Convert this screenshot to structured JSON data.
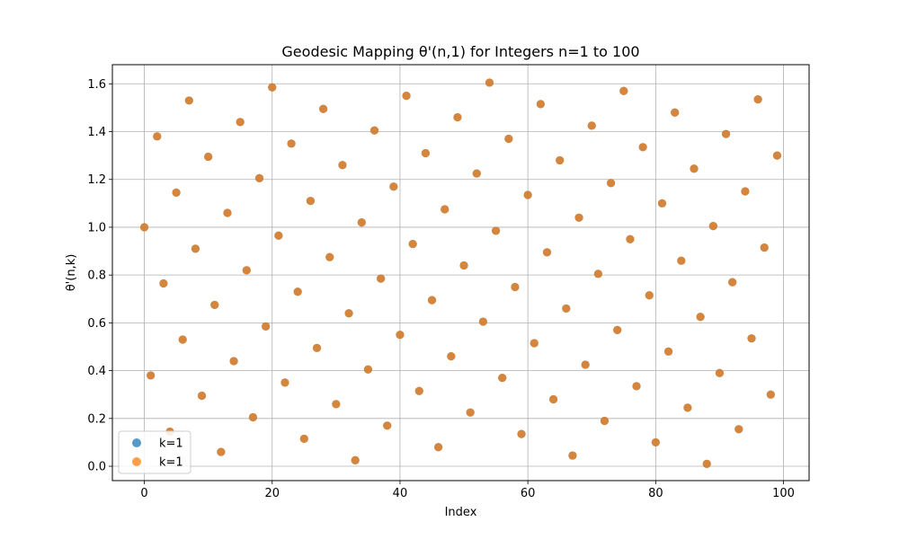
{
  "chart_data": {
    "type": "scatter",
    "title": "Geodesic Mapping θ'(n,1) for Integers n=1 to 100",
    "xlabel": "Index",
    "ylabel": "θ'(n,k)",
    "xlim": [
      -5,
      104
    ],
    "ylim": [
      -0.06,
      1.68
    ],
    "xticks": [
      0,
      20,
      40,
      60,
      80,
      100
    ],
    "yticks": [
      0.0,
      0.2,
      0.4,
      0.6,
      0.8,
      1.0,
      1.2,
      1.4,
      1.6
    ],
    "xtick_labels": [
      "0",
      "20",
      "40",
      "60",
      "80",
      "100"
    ],
    "ytick_labels": [
      "0.0",
      "0.2",
      "0.4",
      "0.6",
      "0.8",
      "1.0",
      "1.2",
      "1.4",
      "1.6"
    ],
    "grid": true,
    "legend_position": "lower-left",
    "series": [
      {
        "name": "k=1",
        "color": "#1f77b4",
        "x": [
          0,
          1,
          2,
          3,
          4,
          5,
          6,
          7,
          8,
          9,
          10,
          11,
          12,
          13,
          14,
          15,
          16,
          17,
          18,
          19,
          20,
          21,
          22,
          23,
          24,
          25,
          26,
          27,
          28,
          29,
          30,
          31,
          32,
          33,
          34,
          35,
          36,
          37,
          38,
          39,
          40,
          41,
          42,
          43,
          44,
          45,
          46,
          47,
          48,
          49,
          50,
          51,
          52,
          53,
          54,
          55,
          56,
          57,
          58,
          59,
          60,
          61,
          62,
          63,
          64,
          65,
          66,
          67,
          68,
          69,
          70,
          71,
          72,
          73,
          74,
          75,
          76,
          77,
          78,
          79,
          80,
          81,
          82,
          83,
          84,
          85,
          86,
          87,
          88,
          89,
          90,
          91,
          92,
          93,
          94,
          95,
          96,
          97,
          98,
          99
        ],
        "y": [
          1.0,
          0.38,
          1.38,
          0.765,
          0.145,
          1.145,
          0.53,
          1.53,
          0.91,
          0.295,
          1.295,
          0.675,
          0.06,
          1.06,
          0.44,
          1.44,
          0.82,
          0.205,
          1.205,
          0.585,
          1.585,
          0.965,
          0.35,
          1.35,
          0.73,
          0.115,
          1.11,
          0.495,
          1.495,
          0.875,
          0.26,
          1.26,
          0.64,
          0.025,
          1.02,
          0.405,
          1.405,
          0.785,
          0.17,
          1.17,
          0.55,
          1.55,
          0.93,
          0.315,
          1.31,
          0.695,
          0.08,
          1.075,
          0.46,
          1.46,
          0.84,
          0.225,
          1.225,
          0.605,
          1.605,
          0.985,
          0.37,
          1.37,
          0.75,
          0.135,
          1.135,
          0.515,
          1.515,
          0.895,
          0.28,
          1.28,
          0.66,
          0.045,
          1.04,
          0.425,
          1.425,
          0.805,
          0.19,
          1.185,
          0.57,
          1.57,
          0.95,
          0.335,
          1.335,
          0.715,
          0.1,
          1.1,
          0.48,
          1.48,
          0.86,
          0.245,
          1.245,
          0.625,
          0.01,
          1.005,
          0.39,
          1.39,
          0.77,
          0.155,
          1.15,
          0.535,
          1.535,
          0.915,
          0.3,
          1.3
        ]
      },
      {
        "name": "k=1",
        "color": "#ff7f0e",
        "x": [
          0,
          1,
          2,
          3,
          4,
          5,
          6,
          7,
          8,
          9,
          10,
          11,
          12,
          13,
          14,
          15,
          16,
          17,
          18,
          19,
          20,
          21,
          22,
          23,
          24,
          25,
          26,
          27,
          28,
          29,
          30,
          31,
          32,
          33,
          34,
          35,
          36,
          37,
          38,
          39,
          40,
          41,
          42,
          43,
          44,
          45,
          46,
          47,
          48,
          49,
          50,
          51,
          52,
          53,
          54,
          55,
          56,
          57,
          58,
          59,
          60,
          61,
          62,
          63,
          64,
          65,
          66,
          67,
          68,
          69,
          70,
          71,
          72,
          73,
          74,
          75,
          76,
          77,
          78,
          79,
          80,
          81,
          82,
          83,
          84,
          85,
          86,
          87,
          88,
          89,
          90,
          91,
          92,
          93,
          94,
          95,
          96,
          97,
          98,
          99
        ],
        "y": [
          1.0,
          0.38,
          1.38,
          0.765,
          0.145,
          1.145,
          0.53,
          1.53,
          0.91,
          0.295,
          1.295,
          0.675,
          0.06,
          1.06,
          0.44,
          1.44,
          0.82,
          0.205,
          1.205,
          0.585,
          1.585,
          0.965,
          0.35,
          1.35,
          0.73,
          0.115,
          1.11,
          0.495,
          1.495,
          0.875,
          0.26,
          1.26,
          0.64,
          0.025,
          1.02,
          0.405,
          1.405,
          0.785,
          0.17,
          1.17,
          0.55,
          1.55,
          0.93,
          0.315,
          1.31,
          0.695,
          0.08,
          1.075,
          0.46,
          1.46,
          0.84,
          0.225,
          1.225,
          0.605,
          1.605,
          0.985,
          0.37,
          1.37,
          0.75,
          0.135,
          1.135,
          0.515,
          1.515,
          0.895,
          0.28,
          1.28,
          0.66,
          0.045,
          1.04,
          0.425,
          1.425,
          0.805,
          0.19,
          1.185,
          0.57,
          1.57,
          0.95,
          0.335,
          1.335,
          0.715,
          0.1,
          1.1,
          0.48,
          1.48,
          0.86,
          0.245,
          1.245,
          0.625,
          0.01,
          1.005,
          0.39,
          1.39,
          0.77,
          0.155,
          1.15,
          0.535,
          1.535,
          0.915,
          0.3,
          1.3
        ]
      }
    ]
  }
}
